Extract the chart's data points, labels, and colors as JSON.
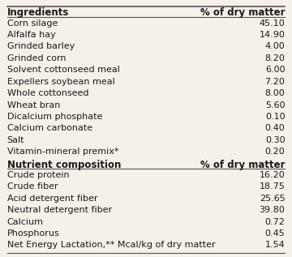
{
  "header": [
    "Ingredients",
    "% of dry matter"
  ],
  "ingredients_rows": [
    [
      "Corn silage",
      "45.10"
    ],
    [
      "Alfalfa hay",
      "14.90"
    ],
    [
      "Grinded barley",
      "4.00"
    ],
    [
      "Grinded corn",
      "8.20"
    ],
    [
      "Solvent cottonseed meal",
      "6.00"
    ],
    [
      "Expellers soybean meal",
      "7.20"
    ],
    [
      "Whole cottonseed",
      "8.00"
    ],
    [
      "Wheat bran",
      "5.60"
    ],
    [
      "Dicalcium phosphate",
      "0.10"
    ],
    [
      "Calcium carbonate",
      "0.40"
    ],
    [
      "Salt",
      "0.30"
    ],
    [
      "Vitamin-mineral premix*",
      "0.20"
    ]
  ],
  "nutrient_header": [
    "Nutrient composition",
    "% of dry matter"
  ],
  "nutrient_rows": [
    [
      "Crude protein",
      "16.20"
    ],
    [
      "Crude fiber",
      "18.75"
    ],
    [
      "Acid detergent fiber",
      "25.65"
    ],
    [
      "Neutral detergent fiber",
      "39.80"
    ],
    [
      "Calcium",
      "0.72"
    ],
    [
      "Phosphorus",
      "0.45"
    ],
    [
      "Net Energy Lactation,** Mcal/kg of dry matter",
      "1.54"
    ]
  ],
  "bg_color": "#f5f0e8",
  "text_color": "#1a1a1a",
  "header_fontsize": 8.5,
  "row_fontsize": 8.0,
  "line_color": "#555555"
}
